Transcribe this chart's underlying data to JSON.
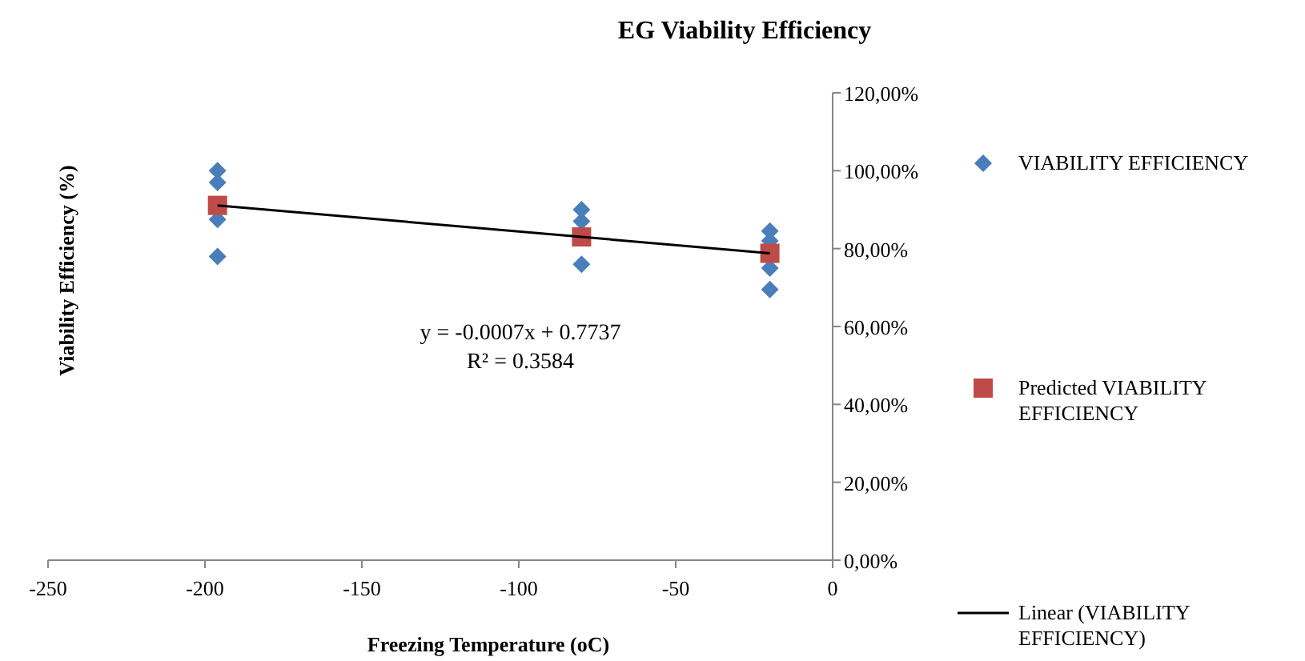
{
  "chart_data": {
    "type": "scatter",
    "title": "EG Viability Efficiency",
    "xlabel": "Freezing Temperature (oC)",
    "ylabel": "Viability Efficiency (%)",
    "xlim": [
      -250,
      0
    ],
    "xticks": [
      -250,
      -200,
      -150,
      -100,
      -50,
      0
    ],
    "ylim": [
      0,
      1.2
    ],
    "yticks": [
      {
        "value": 0,
        "label": "0,00%"
      },
      {
        "value": 0.2,
        "label": "20,00%"
      },
      {
        "value": 0.4,
        "label": "40,00%"
      },
      {
        "value": 0.6,
        "label": "60,00%"
      },
      {
        "value": 0.8,
        "label": "80,00%"
      },
      {
        "value": 1.0,
        "label": "100,00%"
      },
      {
        "value": 1.2,
        "label": "120,00%"
      }
    ],
    "grid": false,
    "legend": "right",
    "series": [
      {
        "name": "VIABILITY EFFICIENCY",
        "type": "scatter",
        "marker": "diamond",
        "color": "#4a7ebb",
        "x": [
          -196,
          -196,
          -196,
          -196,
          -80,
          -80,
          -80,
          -20,
          -20,
          -20,
          -20
        ],
        "values": [
          1.0,
          0.97,
          0.875,
          0.78,
          0.9,
          0.87,
          0.76,
          0.845,
          0.82,
          0.75,
          0.695
        ]
      },
      {
        "name": "Predicted VIABILITY EFFICIENCY",
        "type": "scatter",
        "marker": "square",
        "color": "#be4b48",
        "x": [
          -196,
          -80,
          -20
        ],
        "values": [
          0.911,
          0.83,
          0.788
        ]
      },
      {
        "name": "Linear (VIABILITY EFFICIENCY)",
        "type": "line",
        "marker": "none",
        "line_style": "solid",
        "color": "#000000",
        "x": [
          -196,
          -20
        ],
        "values": [
          0.911,
          0.788
        ]
      }
    ],
    "annotations": [
      "y = -0.0007x + 0.7737",
      "R² = 0.3584"
    ]
  }
}
